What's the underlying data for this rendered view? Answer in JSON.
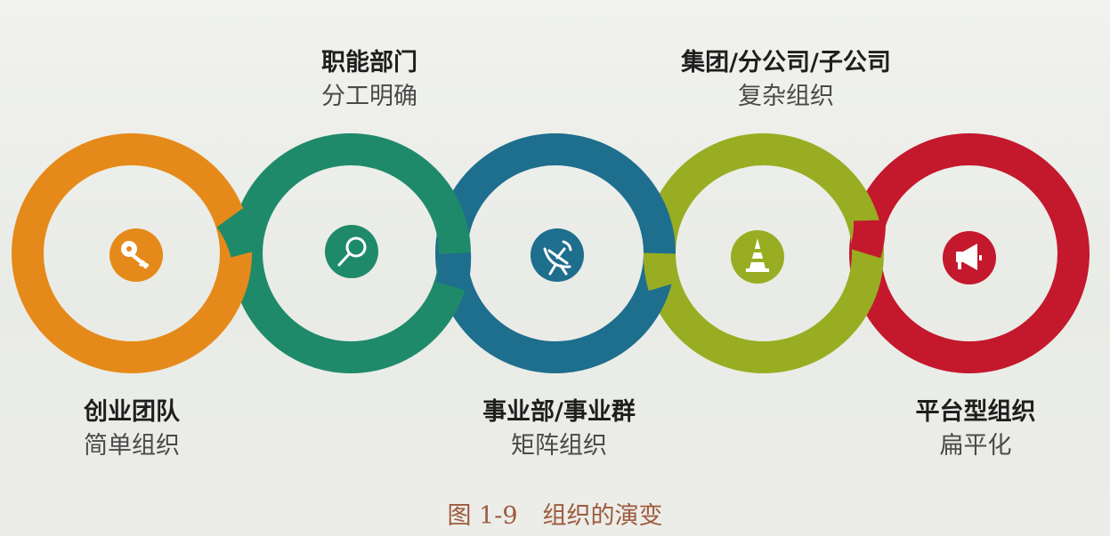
{
  "stages": [
    {
      "title": "创业团队",
      "subtitle": "简单组织",
      "icon": "key-icon",
      "color": "#e58a1a"
    },
    {
      "title": "职能部门",
      "subtitle": "分工明确",
      "icon": "magnifier-icon",
      "color": "#1f8a6a"
    },
    {
      "title": "事业部/事业群",
      "subtitle": "矩阵组织",
      "icon": "satellite-dish-icon",
      "color": "#1e6e8e"
    },
    {
      "title": "集团/分公司/子公司",
      "subtitle": "复杂组织",
      "icon": "traffic-cone-icon",
      "color": "#98ad22"
    },
    {
      "title": "平台型组织",
      "subtitle": "扁平化",
      "icon": "megaphone-icon",
      "color": "#c4182c"
    }
  ],
  "caption": {
    "figure": "图 1-9",
    "text": "组织的演变"
  }
}
